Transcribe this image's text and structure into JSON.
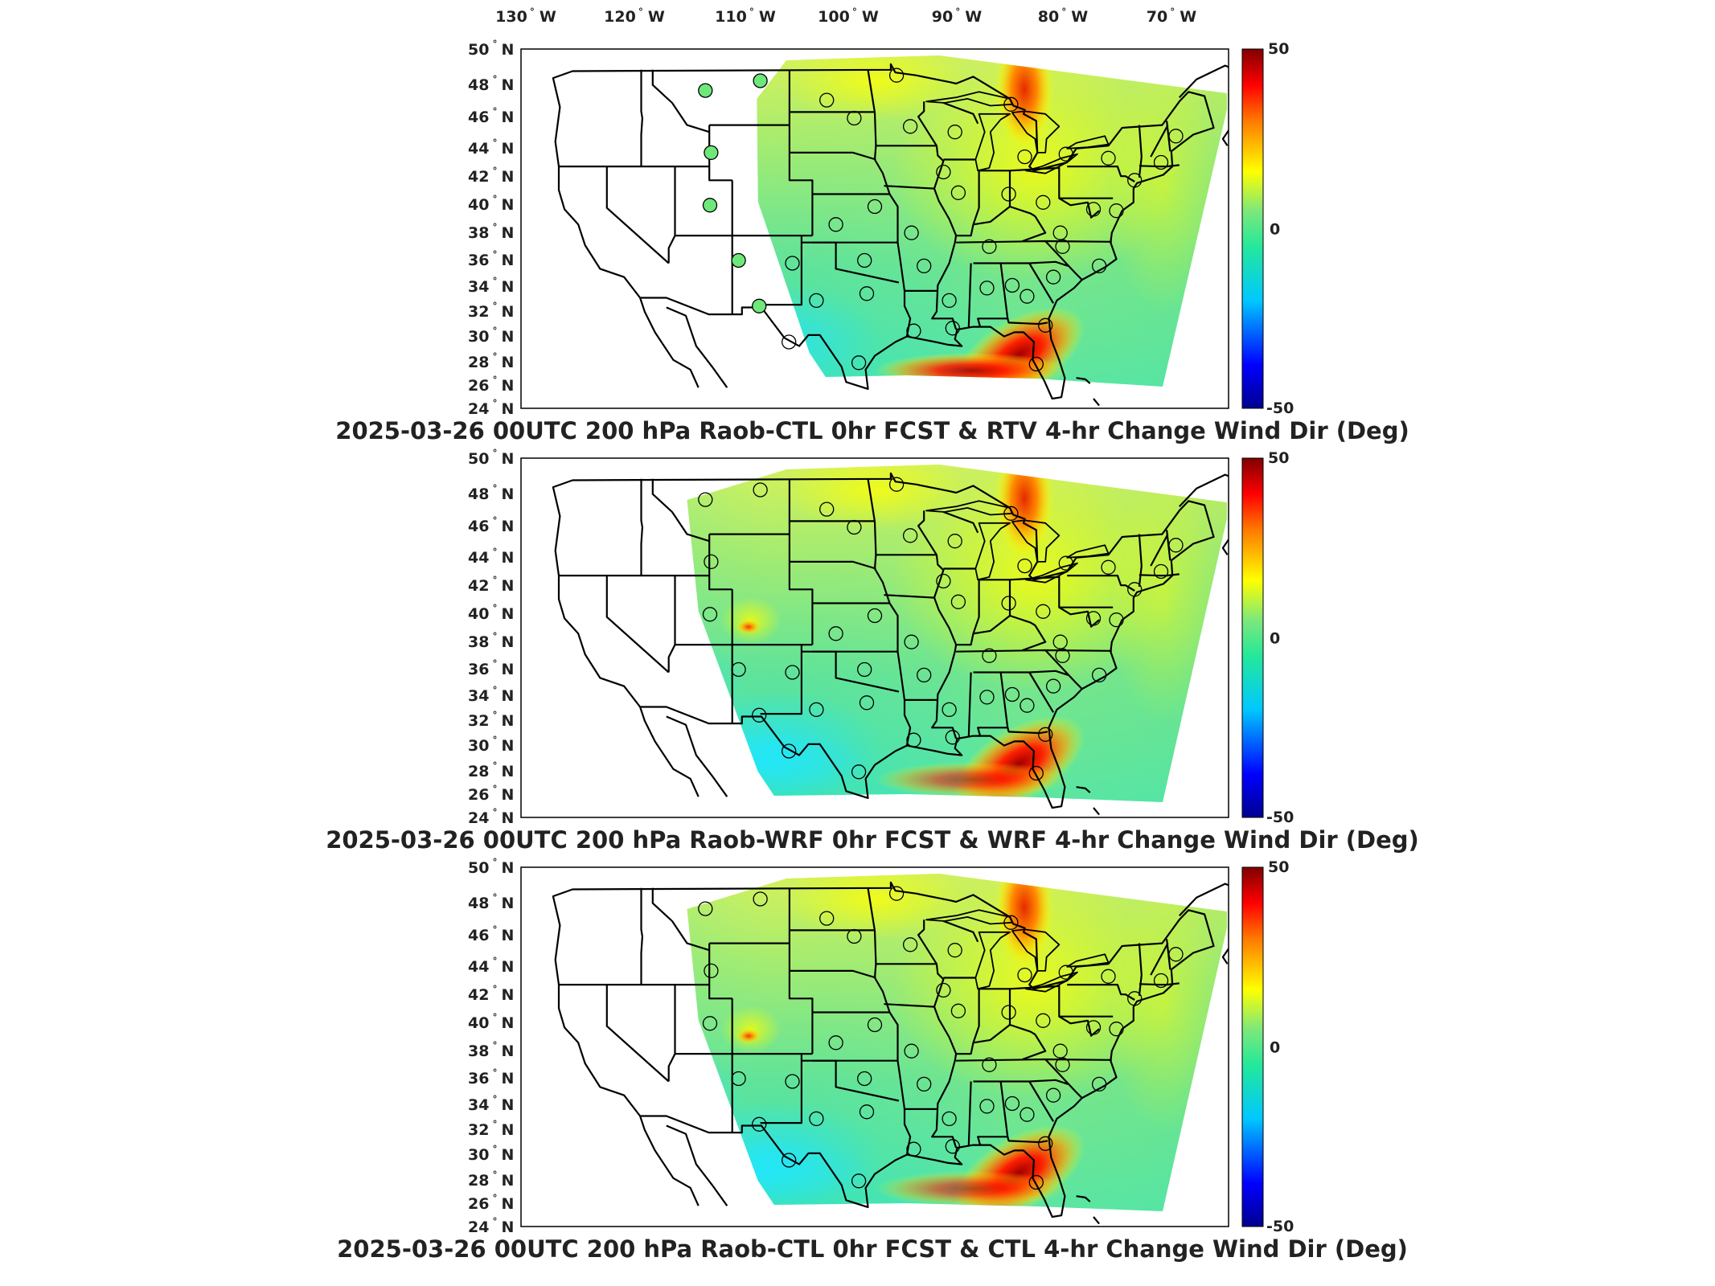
{
  "figure": {
    "colorbar": {
      "min": -50,
      "mid": 0,
      "max": 50,
      "stops": [
        "#00008f",
        "#0000ff",
        "#00c8ff",
        "#24e89a",
        "#7ee87a",
        "#ffff00",
        "#ff7a00",
        "#ff0000",
        "#800000"
      ]
    },
    "longitude_labels": [
      {
        "value": "130",
        "unit": "W"
      },
      {
        "value": "120",
        "unit": "W"
      },
      {
        "value": "110",
        "unit": "W"
      },
      {
        "value": "100",
        "unit": "W"
      },
      {
        "value": "90",
        "unit": "W"
      },
      {
        "value": "80",
        "unit": "W"
      },
      {
        "value": "70",
        "unit": "W"
      }
    ],
    "latitude_labels": [
      {
        "value": "50",
        "unit": "N"
      },
      {
        "value": "48",
        "unit": "N"
      },
      {
        "value": "46",
        "unit": "N"
      },
      {
        "value": "44",
        "unit": "N"
      },
      {
        "value": "42",
        "unit": "N"
      },
      {
        "value": "40",
        "unit": "N"
      },
      {
        "value": "38",
        "unit": "N"
      },
      {
        "value": "36",
        "unit": "N"
      },
      {
        "value": "34",
        "unit": "N"
      },
      {
        "value": "32",
        "unit": "N"
      },
      {
        "value": "30",
        "unit": "N"
      },
      {
        "value": "28",
        "unit": "N"
      },
      {
        "value": "26",
        "unit": "N"
      },
      {
        "value": "24",
        "unit": "N"
      }
    ],
    "degree_symbol": "°"
  },
  "panels": [
    {
      "title": "2025-03-26 00UTC 200 hPa Raob-CTL 0hr FCST & RTV 4-hr Change Wind Dir (Deg)",
      "cb_max": "50",
      "cb_mid": "0",
      "cb_min": "-50"
    },
    {
      "title": "2025-03-26 00UTC 200 hPa Raob-WRF 0hr FCST & WRF 4-hr Change Wind Dir (Deg)",
      "cb_max": "50",
      "cb_mid": "0",
      "cb_min": "-50"
    },
    {
      "title": "2025-03-26 00UTC 200 hPa Raob-CTL 0hr FCST & CTL 4-hr Change Wind Dir (Deg)",
      "cb_max": "50",
      "cb_mid": "0",
      "cb_min": "-50"
    }
  ],
  "stations": [
    {
      "lon": -111.4,
      "lat": 47.5
    },
    {
      "lon": -106.6,
      "lat": 48.2
    },
    {
      "lon": -100.8,
      "lat": 46.8
    },
    {
      "lon": -98.4,
      "lat": 45.5
    },
    {
      "lon": -93.5,
      "lat": 44.9
    },
    {
      "lon": -89.6,
      "lat": 44.5
    },
    {
      "lon": -84.7,
      "lat": 46.5
    },
    {
      "lon": -94.7,
      "lat": 48.6
    },
    {
      "lon": -110.9,
      "lat": 43.0
    },
    {
      "lon": -111.0,
      "lat": 39.2
    },
    {
      "lon": -108.5,
      "lat": 35.2
    },
    {
      "lon": -106.7,
      "lat": 31.9
    },
    {
      "lon": -103.8,
      "lat": 35.0
    },
    {
      "lon": -100.0,
      "lat": 37.8
    },
    {
      "lon": -96.6,
      "lat": 39.1
    },
    {
      "lon": -97.5,
      "lat": 35.2
    },
    {
      "lon": -101.7,
      "lat": 32.3
    },
    {
      "lon": -97.3,
      "lat": 32.8
    },
    {
      "lon": -104.1,
      "lat": 29.3
    },
    {
      "lon": -98.0,
      "lat": 27.8
    },
    {
      "lon": -93.2,
      "lat": 30.1
    },
    {
      "lon": -90.1,
      "lat": 32.3
    },
    {
      "lon": -92.3,
      "lat": 34.8
    },
    {
      "lon": -93.4,
      "lat": 37.2
    },
    {
      "lon": -89.3,
      "lat": 40.1
    },
    {
      "lon": -90.6,
      "lat": 41.6
    },
    {
      "lon": -86.6,
      "lat": 36.2
    },
    {
      "lon": -86.8,
      "lat": 33.2
    },
    {
      "lon": -84.6,
      "lat": 33.4
    },
    {
      "lon": -89.8,
      "lat": 30.3
    },
    {
      "lon": -81.7,
      "lat": 30.5
    },
    {
      "lon": -82.5,
      "lat": 27.7
    },
    {
      "lon": -83.3,
      "lat": 32.6
    },
    {
      "lon": -81.0,
      "lat": 34.0
    },
    {
      "lon": -77.0,
      "lat": 34.8
    },
    {
      "lon": -80.4,
      "lat": 37.2
    },
    {
      "lon": -77.5,
      "lat": 38.9
    },
    {
      "lon": -75.5,
      "lat": 38.8
    },
    {
      "lon": -81.9,
      "lat": 39.4
    },
    {
      "lon": -84.9,
      "lat": 40.0
    },
    {
      "lon": -83.5,
      "lat": 42.7
    },
    {
      "lon": -79.9,
      "lat": 42.9
    },
    {
      "lon": -76.2,
      "lat": 42.6
    },
    {
      "lon": -73.9,
      "lat": 41.0
    },
    {
      "lon": -71.6,
      "lat": 42.3
    },
    {
      "lon": -70.3,
      "lat": 44.2
    },
    {
      "lon": -80.2,
      "lat": 36.2
    }
  ]
}
